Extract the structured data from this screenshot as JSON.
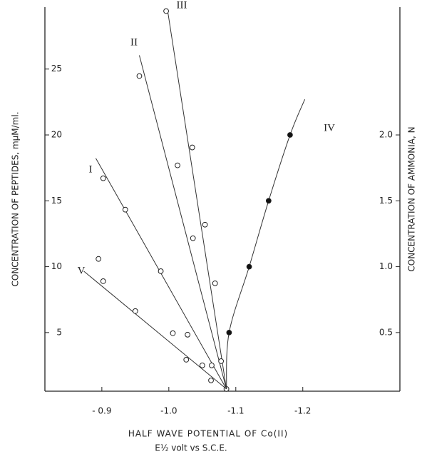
{
  "chart_data": {
    "type": "scatter",
    "x_label": "HALF WAVE POTENTIAL OF Co(II)",
    "x_label_2": "E½ volt vs S.C.E.",
    "y_label": "CONCENTRATION OF PEPTIDES, mμM/ml.",
    "y2_label": "CONCENTRATION OF AMMONIA, N",
    "xlim": [
      -0.815,
      -1.345
    ],
    "xticks": [
      {
        "value": -0.9,
        "label": "- 0.9"
      },
      {
        "value": -1.0,
        "label": "-1.0"
      },
      {
        "value": -1.1,
        "label": "-1.1"
      },
      {
        "value": -1.2,
        "label": "-1.2"
      }
    ],
    "ylim": [
      0.55,
      29.7
    ],
    "yticks": [
      5,
      10,
      15,
      20,
      25
    ],
    "y2lim": [
      0.055,
      2.97
    ],
    "y2ticks": [
      0.5,
      {
        "value": 1.0,
        "label": "1.0"
      },
      1.5,
      {
        "value": 2.0,
        "label": "2.0"
      }
    ],
    "series": [
      {
        "name": "I",
        "marker": "open",
        "x": [
          -0.902,
          -0.935,
          -0.988,
          -1.028,
          -1.05,
          -1.086
        ],
        "values": [
          16.71,
          14.33,
          9.66,
          4.84,
          2.51,
          0.72
        ],
        "fit_x": [
          -0.891,
          -1.086
        ],
        "fit_y": [
          18.23,
          0.72
        ]
      },
      {
        "name": "II",
        "marker": "open",
        "x": [
          -0.956,
          -1.013,
          -1.036,
          -1.064
        ],
        "values": [
          24.47,
          17.69,
          12.16,
          2.51
        ],
        "fit_x": [
          -0.956,
          -1.086
        ],
        "fit_y": [
          26.04,
          0.72
        ]
      },
      {
        "name": "III",
        "marker": "open",
        "x": [
          -0.996,
          -1.035,
          -1.054,
          -1.069,
          -1.078
        ],
        "values": [
          29.4,
          19.05,
          13.19,
          8.74,
          2.83
        ],
        "fit_x": [
          -0.998,
          -1.086
        ],
        "fit_y": [
          29.5,
          0.72
        ]
      },
      {
        "name": "IV",
        "marker": "filled",
        "axis": "y2",
        "x": [
          -1.09,
          -1.12,
          -1.149,
          -1.181
        ],
        "values": [
          0.5,
          1.0,
          1.5,
          2.0
        ],
        "fit_x": [
          -1.086,
          -1.09,
          -1.12,
          -1.149,
          -1.181,
          -1.203
        ],
        "fit_y": [
          0.072,
          0.5,
          1.0,
          1.5,
          2.0,
          2.27
        ]
      },
      {
        "name": "V",
        "marker": "open",
        "x": [
          -0.895,
          -0.902,
          -0.95,
          -1.006,
          -1.026,
          -1.063
        ],
        "values": [
          10.59,
          8.9,
          6.63,
          4.95,
          2.94,
          1.37
        ],
        "fit_x": [
          -0.873,
          -1.086
        ],
        "fit_y": [
          9.66,
          0.72
        ]
      }
    ]
  }
}
